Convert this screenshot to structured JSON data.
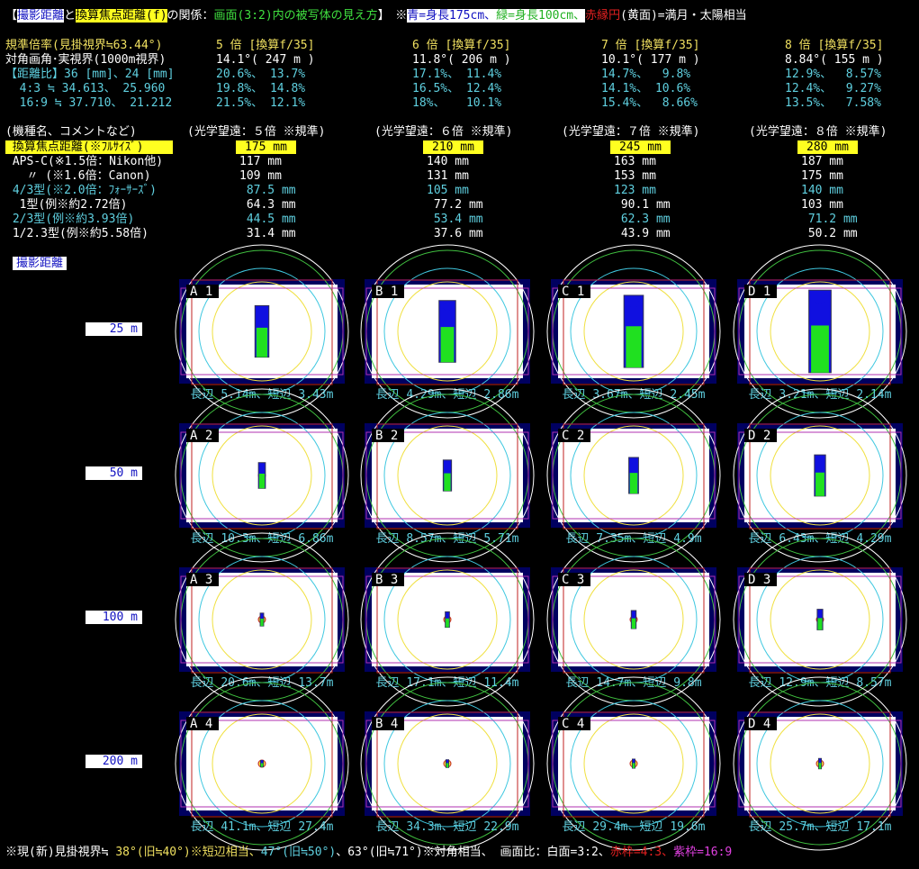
{
  "header": {
    "open": "【",
    "dist": "撮影距離",
    "and": "と",
    "focal": "換算焦点距離(f)",
    "rel": "の関係：",
    "desc": "画面(3:2)内の被写体の見え方",
    "close": "】　※",
    "blue": "青=身長175cm、",
    "green": "緑=身長100cm、",
    "red": "赤縁円",
    "moon": "(黄面)=満月・太陽相当"
  },
  "spec": {
    "labels": [
      "規準倍率(見掛視界≒63.44°)",
      "対角画角･実視界(1000m視界)",
      "【距離比】36 [mm]、24 [mm]",
      "  4:3 ≒ 34.613、 25.960",
      "  16:9 ≒ 37.710、 21.212"
    ],
    "cols": [
      [
        "5 倍 [換算f/35]",
        "14.1°( 247 m )",
        "20.6%、 13.7%",
        "19.8%、 14.8%",
        "21.5%、 12.1%"
      ],
      [
        "6 倍 [換算f/35]",
        "11.8°( 206 m )",
        "17.1%、 11.4%",
        "16.5%、 12.4%",
        "18%、   10.1%"
      ],
      [
        "7 倍 [換算f/35]",
        "10.1°( 177 m )",
        "14.7%、  9.8%",
        "14.1%、 10.6%",
        "15.4%、  8.66%"
      ],
      [
        "8 倍 [換算f/35]",
        "8.84°( 155 m )",
        "12.9%、  8.57%",
        "12.4%、  9.27%",
        "13.5%、  7.58%"
      ]
    ]
  },
  "table": {
    "header": "(機種名、コメントなど)",
    "col_headers": [
      "(光学望遠：５倍 ※規準)",
      "(光学望遠：６倍 ※規準)",
      "(光学望遠：７倍 ※規準)",
      "(光学望遠：８倍 ※規準)"
    ],
    "rows": [
      {
        "label": " 換算焦点距離(※ﾌﾙｻｲｽﾞ)",
        "values": [
          "175 mm",
          "210 mm",
          "245 mm",
          "280 mm"
        ]
      },
      {
        "label": " APS-C(※1.5倍：Nikon他)",
        "values": [
          "117 mm",
          "140 mm",
          "163 mm",
          "187 mm"
        ]
      },
      {
        "label": "   〃 (※1.6倍：Canon)",
        "values": [
          "109 mm",
          "131 mm",
          "153 mm",
          "175 mm"
        ]
      },
      {
        "label": " 4/3型(※2.0倍：ﾌｫｰｻｰｽﾞ)",
        "values": [
          " 87.5 mm",
          "105 mm",
          "123 mm",
          "140 mm"
        ]
      },
      {
        "label": "  1型(例※約2.72倍)",
        "values": [
          " 64.3 mm",
          " 77.2 mm",
          " 90.1 mm",
          "103 mm"
        ]
      },
      {
        "label": " 2/3型(例※約3.93倍)",
        "values": [
          " 44.5 mm",
          " 53.4 mm",
          " 62.3 mm",
          " 71.2 mm"
        ]
      },
      {
        "label": " 1/2.3型(例※約5.58倍)",
        "values": [
          " 31.4 mm",
          " 37.6 mm",
          " 43.9 mm",
          " 50.2 mm"
        ]
      }
    ]
  },
  "distance_title": "撮影距離",
  "rows": [
    {
      "distance": "25 m",
      "panels": [
        {
          "id": "A 1",
          "long": 5.14,
          "short": 3.43,
          "caption": "長辺 5.14m、短辺 3.43m"
        },
        {
          "id": "B 1",
          "long": 4.29,
          "short": 2.86,
          "caption": "長辺 4.29m、短辺 2.86m"
        },
        {
          "id": "C 1",
          "long": 3.67,
          "short": 2.45,
          "caption": "長辺 3.67m、短辺 2.45m"
        },
        {
          "id": "D 1",
          "long": 3.21,
          "short": 2.14,
          "caption": "長辺 3.21m、短辺 2.14m"
        }
      ]
    },
    {
      "distance": "50 m",
      "panels": [
        {
          "id": "A 2",
          "long": 10.3,
          "short": 6.86,
          "caption": "長辺 10.3m、短辺 6.86m"
        },
        {
          "id": "B 2",
          "long": 8.57,
          "short": 5.71,
          "caption": "長辺 8.57m、短辺 5.71m"
        },
        {
          "id": "C 2",
          "long": 7.35,
          "short": 4.9,
          "caption": "長辺 7.35m、短辺 4.9m"
        },
        {
          "id": "D 2",
          "long": 6.43,
          "short": 4.29,
          "caption": "長辺 6.43m、短辺 4.29m"
        }
      ]
    },
    {
      "distance": "100 m",
      "panels": [
        {
          "id": "A 3",
          "long": 20.6,
          "short": 13.7,
          "caption": "長辺 20.6m、短辺 13.7m"
        },
        {
          "id": "B 3",
          "long": 17.1,
          "short": 11.4,
          "caption": "長辺 17.1m、短辺 11.4m"
        },
        {
          "id": "C 3",
          "long": 14.7,
          "short": 9.8,
          "caption": "長辺 14.7m、短辺 9.8m"
        },
        {
          "id": "D 3",
          "long": 12.9,
          "short": 8.57,
          "caption": "長辺 12.9m、短辺 8.57m"
        }
      ]
    },
    {
      "distance": "200 m",
      "panels": [
        {
          "id": "A 4",
          "long": 41.1,
          "short": 27.4,
          "caption": "長辺 41.1m、短辺 27.4m"
        },
        {
          "id": "B 4",
          "long": 34.3,
          "short": 22.9,
          "caption": "長辺 34.3m、短辺 22.9m"
        },
        {
          "id": "C 4",
          "long": 29.4,
          "short": 19.6,
          "caption": "長辺 29.4m、短辺 19.6m"
        },
        {
          "id": "D 4",
          "long": 25.7,
          "short": 17.1,
          "caption": "長辺 25.7m、短辺 17.1m"
        }
      ]
    }
  ],
  "footer": {
    "a": "※現(新)見掛視界≒ ",
    "b": "38°(旧≒40°)",
    "c": "※短辺相当、",
    "d": "47°(旧≒50°)",
    "e": "、63°(旧≒71°)※対角相当、 画面比：白面=3:2、",
    "f": "赤枠=4:3、",
    "g": "紫枠=16:9"
  },
  "figure_heights_m": {
    "blue": 1.75,
    "green": 1.0
  },
  "colors": {
    "blue_figure": "#1010e0",
    "green_figure": "#20e020",
    "frame_43": "#c02020",
    "frame_169": "#b030b0",
    "field_38": "#f0e040",
    "field_47": "#40c8e0",
    "field_63": "#40c040"
  }
}
